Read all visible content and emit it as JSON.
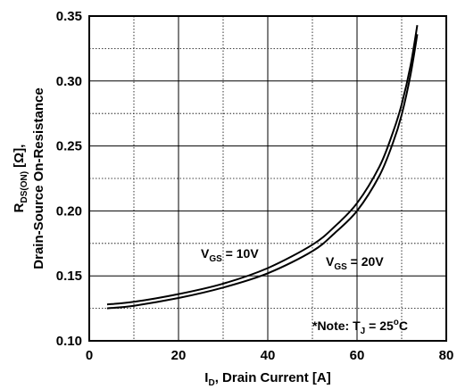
{
  "chart_data": {
    "type": "line",
    "xlabel": {
      "main": "I",
      "sub": "D",
      "rest": ", Drain Current [A]"
    },
    "ylabel": {
      "line1": {
        "main": "R",
        "sub": "DS(ON)",
        "rest": " [Ω],"
      },
      "line2": "Drain-Source On-Resistance"
    },
    "xlim": [
      0,
      80
    ],
    "ylim": [
      0.1,
      0.35
    ],
    "x_ticks": [
      "0",
      "20",
      "40",
      "60",
      "80"
    ],
    "y_ticks": [
      "0.10",
      "0.15",
      "0.20",
      "0.25",
      "0.30",
      "0.35"
    ],
    "grid": true,
    "series": [
      {
        "name": "VGS = 10V",
        "label": {
          "main": "V",
          "sub": "GS",
          "rest": " = 10V"
        },
        "x": [
          4,
          10,
          20,
          30,
          40,
          50,
          55,
          60,
          65,
          68,
          70,
          72,
          73.5
        ],
        "y": [
          0.128,
          0.13,
          0.136,
          0.144,
          0.156,
          0.174,
          0.188,
          0.206,
          0.234,
          0.26,
          0.282,
          0.312,
          0.343
        ]
      },
      {
        "name": "VGS = 20V",
        "label": {
          "main": "V",
          "sub": "GS",
          "rest": " = 20V"
        },
        "x": [
          4,
          10,
          20,
          30,
          40,
          50,
          55,
          60,
          65,
          68,
          70,
          72,
          73.5
        ],
        "y": [
          0.125,
          0.127,
          0.133,
          0.141,
          0.152,
          0.169,
          0.183,
          0.2,
          0.227,
          0.252,
          0.274,
          0.305,
          0.336
        ]
      }
    ],
    "note": {
      "prefix": "*Note: T",
      "sub": "J",
      "rest": " = 25",
      "unit": "C"
    }
  }
}
